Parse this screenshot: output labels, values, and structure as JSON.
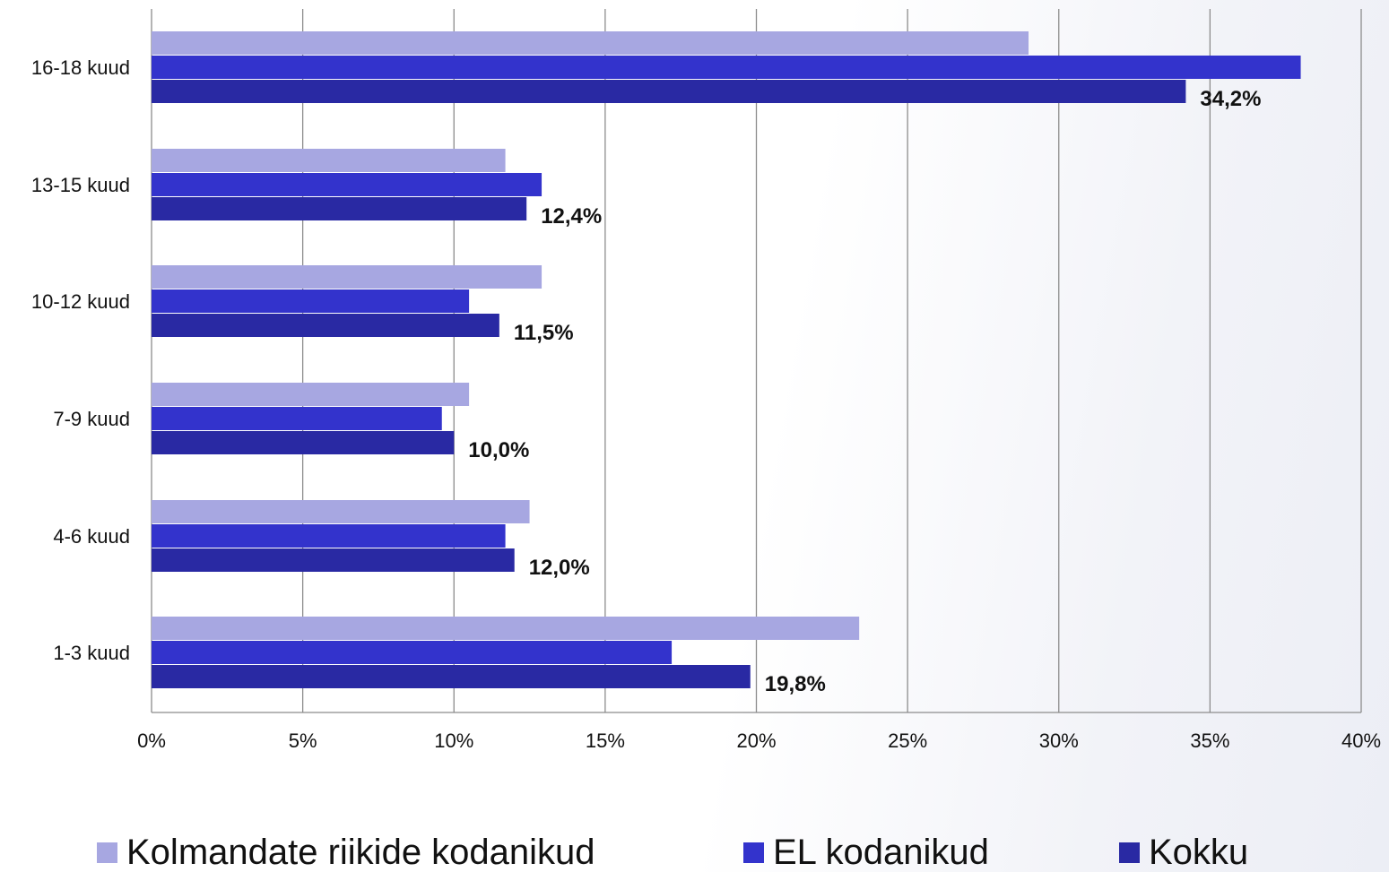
{
  "chart_data": {
    "type": "bar",
    "orientation": "horizontal",
    "categories": [
      "16-18 kuud",
      "13-15 kuud",
      "10-12 kuud",
      "7-9 kuud",
      "4-6 kuud",
      "1-3 kuud"
    ],
    "series": [
      {
        "name": "Kolmandate riikide kodanikud",
        "color": "#a7a7e1",
        "values": [
          29.0,
          11.7,
          12.9,
          10.5,
          12.5,
          23.4
        ]
      },
      {
        "name": "EL kodanikud",
        "color": "#3333cc",
        "values": [
          38.0,
          12.9,
          10.5,
          9.6,
          11.7,
          17.2
        ]
      },
      {
        "name": "Kokku",
        "color": "#2929a3",
        "values": [
          34.2,
          12.4,
          11.5,
          10.0,
          12.0,
          19.8
        ]
      }
    ],
    "data_labels": {
      "series": "Kokku",
      "labels": [
        "34,2%",
        "12,4%",
        "11,5%",
        "10,0%",
        "12,0%",
        "19,8%"
      ]
    },
    "xlim": [
      0,
      40
    ],
    "x_ticks": [
      0,
      5,
      10,
      15,
      20,
      25,
      30,
      35,
      40
    ],
    "x_tick_labels": [
      "0%",
      "5%",
      "10%",
      "15%",
      "20%",
      "25%",
      "30%",
      "35%",
      "40%"
    ],
    "grid": "vertical",
    "legend_position": "bottom"
  },
  "legend": {
    "items": [
      "Kolmandate riikide kodanikud",
      "EL kodanikud",
      "Kokku"
    ]
  }
}
